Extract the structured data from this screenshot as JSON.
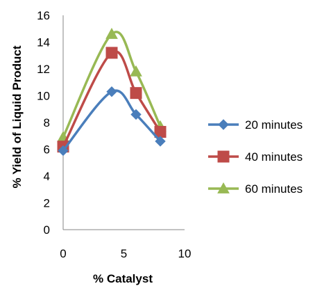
{
  "chart_data": {
    "type": "line",
    "title": "",
    "xlabel": "% Catalyst",
    "ylabel": "% Yield of Liquid Product",
    "xlim": [
      0,
      10
    ],
    "ylim": [
      0,
      16
    ],
    "x_ticks": [
      0,
      5,
      10
    ],
    "y_ticks": [
      0,
      2,
      4,
      6,
      8,
      10,
      12,
      14,
      16
    ],
    "grid": false,
    "legend_position": "right",
    "smooth": true,
    "series": [
      {
        "name": "20 minutes",
        "color": "#4a7ebb",
        "marker": "diamond",
        "x": [
          0,
          4,
          6,
          8
        ],
        "y": [
          5.9,
          10.3,
          8.6,
          6.6
        ]
      },
      {
        "name": "40 minutes",
        "color": "#be4b48",
        "marker": "square",
        "x": [
          0,
          4,
          6,
          8
        ],
        "y": [
          6.2,
          13.2,
          10.2,
          7.3
        ]
      },
      {
        "name": "60 minutes",
        "color": "#98b954",
        "marker": "triangle",
        "x": [
          0,
          4,
          6,
          8
        ],
        "y": [
          6.9,
          14.6,
          11.8,
          7.7
        ]
      }
    ]
  }
}
